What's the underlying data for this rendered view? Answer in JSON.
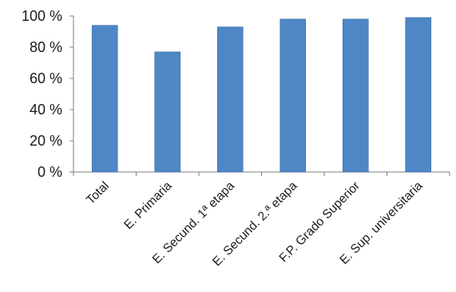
{
  "chart_data": {
    "type": "bar",
    "title": "",
    "xlabel": "",
    "ylabel": "",
    "categories": [
      "Total",
      "E. Primaria",
      "E. Secund. 1ª etapa",
      "E. Secund. 2.ª etapa",
      "F.P. Grado Superior",
      "E. Sup. universitaria"
    ],
    "values": [
      94,
      77,
      93,
      98,
      98,
      99
    ],
    "ylim": [
      0,
      100
    ],
    "yticks": [
      0,
      20,
      40,
      60,
      80,
      100
    ],
    "ytick_labels": [
      "0 %",
      "20 %",
      "40 %",
      "60 %",
      "80 %",
      "100 %"
    ],
    "bar_color": "#4f86c6",
    "bar_edge_color": "#3b6fa8",
    "grid": false,
    "legend": "none"
  }
}
